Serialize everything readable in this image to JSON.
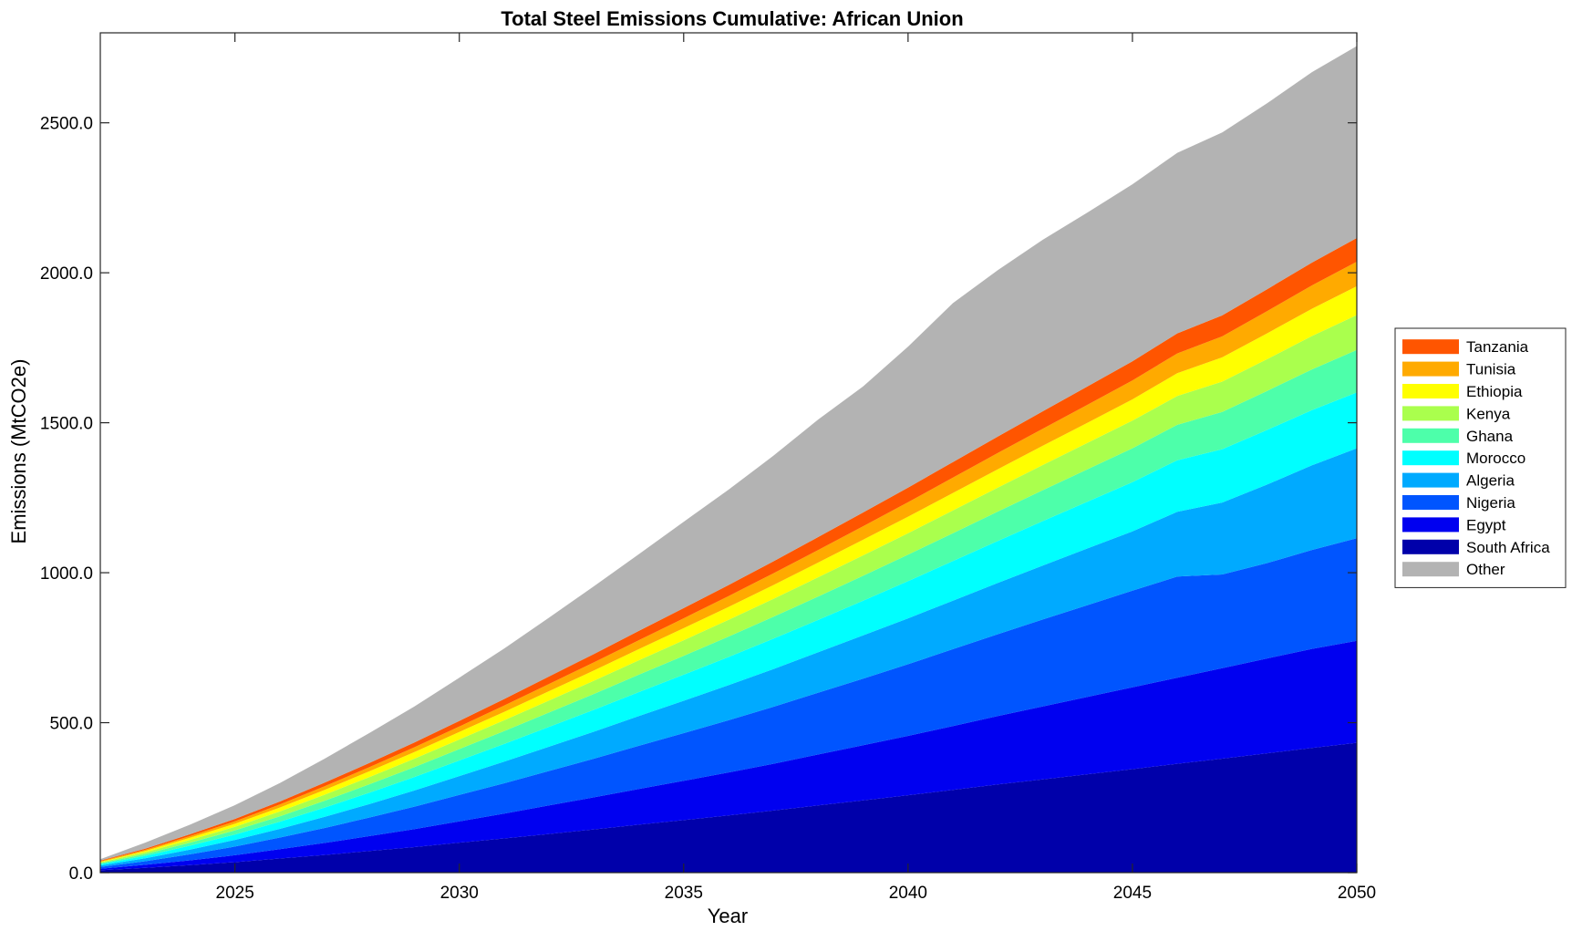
{
  "chart_data": {
    "type": "area",
    "stacked": true,
    "title": "Total Steel Emissions Cumulative: African Union",
    "xlabel": "Year",
    "ylabel": "Emissions (MtCO2e)",
    "xlim": [
      2022,
      2050
    ],
    "ylim": [
      0,
      2800
    ],
    "xticks": [
      2025,
      2030,
      2035,
      2040,
      2045,
      2050
    ],
    "xtick_labels": [
      "2025",
      "2030",
      "2035",
      "2040",
      "2045",
      "2050"
    ],
    "yticks": [
      0,
      500,
      1000,
      1500,
      2000,
      2500
    ],
    "ytick_labels": [
      "0.0",
      "500.0",
      "1000.0",
      "1500.0",
      "2000.0",
      "2500.0"
    ],
    "grid": false,
    "legend_position": "right",
    "x": [
      2022,
      2023,
      2024,
      2025,
      2026,
      2027,
      2028,
      2029,
      2030,
      2031,
      2032,
      2033,
      2034,
      2035,
      2036,
      2037,
      2038,
      2039,
      2040,
      2041,
      2042,
      2043,
      2044,
      2045,
      2046,
      2047,
      2048,
      2049,
      2050
    ],
    "series": [
      {
        "name": "South Africa",
        "color": "#0000AA",
        "values": [
          8,
          16,
          25,
          35,
          47,
          59,
          72,
          85,
          100,
          114,
          129,
          144,
          160,
          175,
          191,
          207,
          224,
          241,
          258,
          276,
          294,
          311,
          328,
          345,
          363,
          380,
          398,
          416,
          433
        ]
      },
      {
        "name": "Egypt",
        "color": "#0000F0",
        "values": [
          5,
          10,
          16,
          23,
          31,
          40,
          50,
          60,
          71,
          83,
          95,
          107,
          119,
          131,
          143,
          156,
          170,
          184,
          198,
          213,
          228,
          243,
          258,
          273,
          287,
          302,
          316,
          330,
          340
        ]
      },
      {
        "name": "Nigeria",
        "color": "#0055FF",
        "values": [
          6,
          12,
          20,
          29,
          39,
          50,
          62,
          75,
          88,
          101,
          115,
          129,
          144,
          159,
          174,
          190,
          206,
          222,
          239,
          256,
          273,
          290,
          306,
          322,
          337,
          312,
          318,
          330,
          342
        ]
      },
      {
        "name": "Algeria",
        "color": "#00AAFF",
        "values": [
          5,
          10,
          16,
          22,
          29,
          37,
          45,
          54,
          63,
          72,
          81,
          90,
          99,
          108,
          117,
          126,
          135,
          144,
          153,
          162,
          171,
          180,
          189,
          198,
          216,
          240,
          262,
          282,
          300
        ]
      },
      {
        "name": "Morocco",
        "color": "#00FFFF",
        "values": [
          4,
          8,
          13,
          18,
          24,
          31,
          38,
          45,
          52,
          59,
          66,
          73,
          80,
          87,
          94,
          101,
          108,
          116,
          124,
          132,
          140,
          148,
          156,
          164,
          172,
          178,
          182,
          184,
          186
        ]
      },
      {
        "name": "Ghana",
        "color": "#4DFFAA",
        "values": [
          3,
          6,
          10,
          14,
          18,
          23,
          28,
          33,
          38,
          43,
          48,
          53,
          58,
          63,
          68,
          73,
          78,
          83,
          88,
          93,
          98,
          103,
          108,
          113,
          118,
          124,
          130,
          136,
          142
        ]
      },
      {
        "name": "Kenya",
        "color": "#AAFF4D",
        "values": [
          3,
          6,
          9,
          12,
          16,
          20,
          24,
          28,
          32,
          36,
          40,
          44,
          48,
          52,
          56,
          60,
          64,
          68,
          72,
          76,
          80,
          84,
          88,
          92,
          96,
          101,
          106,
          111,
          116
        ]
      },
      {
        "name": "Ethiopia",
        "color": "#FFFF00",
        "values": [
          2,
          4,
          7,
          10,
          13,
          16,
          19,
          22,
          25,
          28,
          31,
          34,
          37,
          40,
          43,
          46,
          49,
          52,
          55,
          58,
          61,
          64,
          67,
          71,
          76,
          81,
          86,
          91,
          96
        ]
      },
      {
        "name": "Tunisia",
        "color": "#FFAA00",
        "values": [
          2,
          4,
          6,
          8,
          10,
          12,
          14,
          16,
          18,
          21,
          24,
          27,
          30,
          33,
          36,
          39,
          42,
          45,
          48,
          51,
          54,
          57,
          60,
          63,
          66,
          70,
          74,
          78,
          82
        ]
      },
      {
        "name": "Tanzania",
        "color": "#FF5500",
        "values": [
          2,
          4,
          6,
          8,
          10,
          12,
          14,
          16,
          19,
          22,
          25,
          28,
          31,
          34,
          37,
          40,
          43,
          46,
          49,
          52,
          55,
          58,
          61,
          64,
          67,
          70,
          73,
          76,
          79
        ]
      },
      {
        "name": "Other",
        "color": "#B3B3B3",
        "values": [
          5,
          20,
          32,
          46,
          62,
          80,
          100,
          120,
          144,
          168,
          196,
          226,
          256,
          288,
          318,
          352,
          392,
          420,
          470,
          530,
          555,
          572,
          580,
          590,
          602,
          610,
          620,
          635,
          640
        ]
      }
    ],
    "legend_order": [
      "Tanzania",
      "Tunisia",
      "Ethiopia",
      "Kenya",
      "Ghana",
      "Morocco",
      "Algeria",
      "Nigeria",
      "Egypt",
      "South Africa",
      "Other"
    ]
  }
}
